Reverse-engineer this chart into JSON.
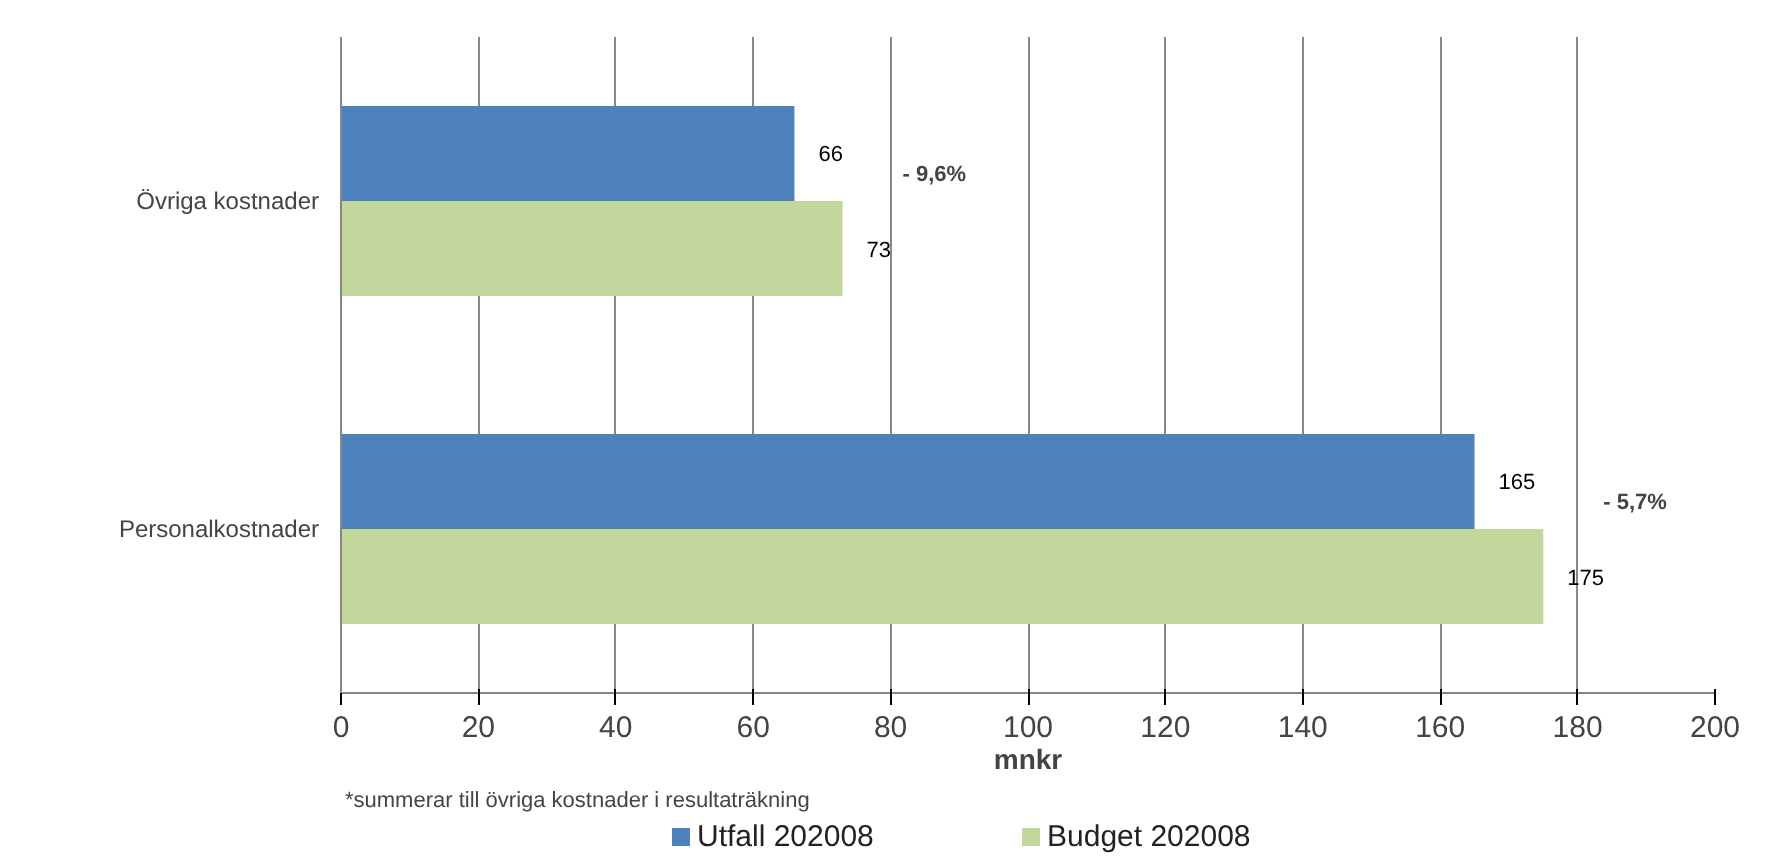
{
  "chart_data": {
    "type": "bar",
    "orientation": "horizontal",
    "categories": [
      "Övriga kostnader",
      "Personalkostnader"
    ],
    "series": [
      {
        "name": "Utfall 202008",
        "color": "#4f81bd",
        "values": [
          66,
          165
        ]
      },
      {
        "name": "Budget 202008",
        "color": "#c3d69b",
        "values": [
          73,
          175
        ]
      }
    ],
    "xlabel": "mnkr",
    "xlim": [
      0,
      200
    ],
    "xticks": [
      0,
      20,
      40,
      60,
      80,
      100,
      120,
      140,
      160,
      180,
      200
    ],
    "grid": "x",
    "legend": "bottom",
    "data_labels": true,
    "annotations": [
      "- 9,6%",
      "- 5,7%",
      "*summerar till övriga kostnader i resultaträkning"
    ]
  }
}
